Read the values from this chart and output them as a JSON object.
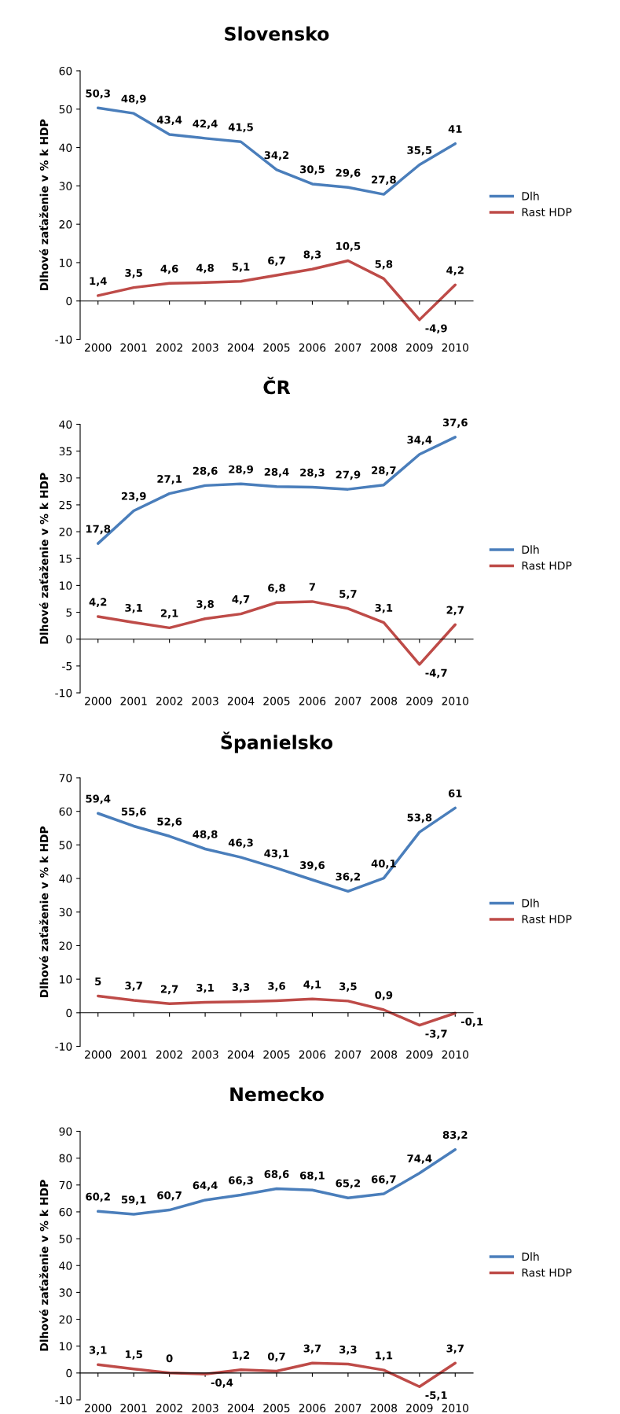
{
  "chart_data": [
    {
      "type": "line",
      "title": "Slovensko",
      "ylabel": "Dlhové zaťaženie v % k HDP",
      "categories": [
        "2000",
        "2001",
        "2002",
        "2003",
        "2004",
        "2005",
        "2006",
        "2007",
        "2008",
        "2009",
        "2010"
      ],
      "ylim": [
        -10,
        60
      ],
      "yticks": [
        -10,
        0,
        10,
        20,
        30,
        40,
        50,
        60
      ],
      "legend": "right",
      "marker": "none",
      "series": [
        {
          "name": "Dlh",
          "color": "#4a7ebb",
          "values": [
            50.3,
            48.9,
            43.4,
            42.4,
            41.5,
            34.2,
            30.5,
            29.6,
            27.8,
            35.5,
            41
          ],
          "value_labels": [
            "50,3",
            "48,9",
            "43,4",
            "42,4",
            "41,5",
            "34,2",
            "30,5",
            "29,6",
            "27,8",
            "35,5",
            "41"
          ]
        },
        {
          "name": "Rast HDP",
          "color": "#be4b48",
          "values": [
            1.4,
            3.5,
            4.6,
            4.8,
            5.1,
            6.7,
            8.3,
            10.5,
            5.8,
            -4.9,
            4.2
          ],
          "value_labels": [
            "1,4",
            "3,5",
            "4,6",
            "4,8",
            "5,1",
            "6,7",
            "8,3",
            "10,5",
            "5,8",
            "-4,9",
            "4,2"
          ]
        }
      ]
    },
    {
      "type": "line",
      "title": "ČR",
      "ylabel": "Dlhové zaťaženie v % k HDP",
      "categories": [
        "2000",
        "2001",
        "2002",
        "2003",
        "2004",
        "2005",
        "2006",
        "2007",
        "2008",
        "2009",
        "2010"
      ],
      "ylim": [
        -10,
        40
      ],
      "yticks": [
        -10,
        -5,
        0,
        5,
        10,
        15,
        20,
        25,
        30,
        35,
        40
      ],
      "legend": "right",
      "marker": "none",
      "series": [
        {
          "name": "Dlh",
          "color": "#4a7ebb",
          "values": [
            17.8,
            23.9,
            27.1,
            28.6,
            28.9,
            28.4,
            28.3,
            27.9,
            28.7,
            34.4,
            37.6
          ],
          "value_labels": [
            "17,8",
            "23,9",
            "27,1",
            "28,6",
            "28,9",
            "28,4",
            "28,3",
            "27,9",
            "28,7",
            "34,4",
            "37,6"
          ]
        },
        {
          "name": "Rast HDP",
          "color": "#be4b48",
          "values": [
            4.2,
            3.1,
            2.1,
            3.8,
            4.7,
            6.8,
            7,
            5.7,
            3.1,
            -4.7,
            2.7
          ],
          "value_labels": [
            "4,2",
            "3,1",
            "2,1",
            "3,8",
            "4,7",
            "6,8",
            "7",
            "5,7",
            "3,1",
            "-4,7",
            "2,7"
          ]
        }
      ]
    },
    {
      "type": "line",
      "title": "Španielsko",
      "ylabel": "Dlhové zaťaženie v % k HDP",
      "categories": [
        "2000",
        "2001",
        "2002",
        "2003",
        "2004",
        "2005",
        "2006",
        "2007",
        "2008",
        "2009",
        "2010"
      ],
      "ylim": [
        -10,
        70
      ],
      "yticks": [
        -10,
        0,
        10,
        20,
        30,
        40,
        50,
        60,
        70
      ],
      "legend": "right",
      "marker": "none",
      "series": [
        {
          "name": "Dlh",
          "color": "#4a7ebb",
          "values": [
            59.4,
            55.6,
            52.6,
            48.8,
            46.3,
            43.1,
            39.6,
            36.2,
            40.1,
            53.8,
            61
          ],
          "value_labels": [
            "59,4",
            "55,6",
            "52,6",
            "48,8",
            "46,3",
            "43,1",
            "39,6",
            "36,2",
            "40,1",
            "53,8",
            "61"
          ]
        },
        {
          "name": "Rast HDP",
          "color": "#be4b48",
          "values": [
            5,
            3.7,
            2.7,
            3.1,
            3.3,
            3.6,
            4.1,
            3.5,
            0.9,
            -3.7,
            -0.1
          ],
          "value_labels": [
            "5",
            "3,7",
            "2,7",
            "3,1",
            "3,3",
            "3,6",
            "4,1",
            "3,5",
            "0,9",
            "-3,7",
            "-0,1"
          ]
        }
      ]
    },
    {
      "type": "line",
      "title": "Nemecko",
      "ylabel": "Dlhové zaťaženie v % k HDP",
      "categories": [
        "2000",
        "2001",
        "2002",
        "2003",
        "2004",
        "2005",
        "2006",
        "2007",
        "2008",
        "2009",
        "2010"
      ],
      "ylim": [
        -10,
        90
      ],
      "yticks": [
        -10,
        0,
        10,
        20,
        30,
        40,
        50,
        60,
        70,
        80,
        90
      ],
      "legend": "right",
      "marker": "none",
      "series": [
        {
          "name": "Dlh",
          "color": "#4a7ebb",
          "values": [
            60.2,
            59.1,
            60.7,
            64.4,
            66.3,
            68.6,
            68.1,
            65.2,
            66.7,
            74.4,
            83.2
          ],
          "value_labels": [
            "60,2",
            "59,1",
            "60,7",
            "64,4",
            "66,3",
            "68,6",
            "68,1",
            "65,2",
            "66,7",
            "74,4",
            "83,2"
          ]
        },
        {
          "name": "Rast HDP",
          "color": "#be4b48",
          "values": [
            3.1,
            1.5,
            0,
            -0.4,
            1.2,
            0.7,
            3.7,
            3.3,
            1.1,
            -5.1,
            3.7
          ],
          "value_labels": [
            "3,1",
            "1,5",
            "0",
            "-0,4",
            "1,2",
            "0,7",
            "3,7",
            "3,3",
            "1,1",
            "-5,1",
            "3,7"
          ]
        }
      ]
    }
  ]
}
